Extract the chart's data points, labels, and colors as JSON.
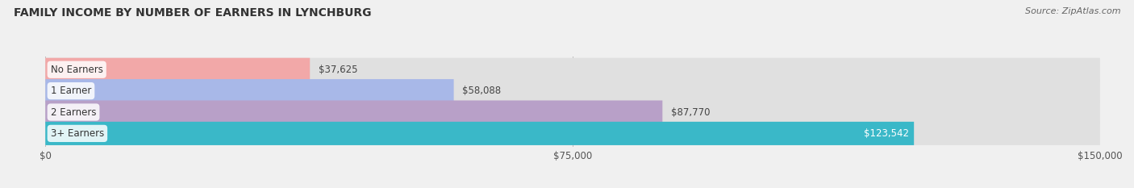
{
  "title": "FAMILY INCOME BY NUMBER OF EARNERS IN LYNCHBURG",
  "source": "Source: ZipAtlas.com",
  "categories": [
    "No Earners",
    "1 Earner",
    "2 Earners",
    "3+ Earners"
  ],
  "values": [
    37625,
    58088,
    87770,
    123542
  ],
  "bar_colors": [
    "#f2a8a8",
    "#a8b8e8",
    "#b8a0c8",
    "#3ab8c8"
  ],
  "label_colors": [
    "#444444",
    "#444444",
    "#444444",
    "#ffffff"
  ],
  "value_labels": [
    "$37,625",
    "$58,088",
    "$87,770",
    "$123,542"
  ],
  "xlim": [
    0,
    150000
  ],
  "xtick_labels": [
    "$0",
    "$75,000",
    "$150,000"
  ],
  "xtick_vals": [
    0,
    75000,
    150000
  ],
  "background_color": "#f0f0f0",
  "bar_bg_color": "#e0e0e0",
  "title_fontsize": 10,
  "source_fontsize": 8,
  "bar_height": 0.58,
  "figsize": [
    14.06,
    2.33
  ],
  "dpi": 100
}
